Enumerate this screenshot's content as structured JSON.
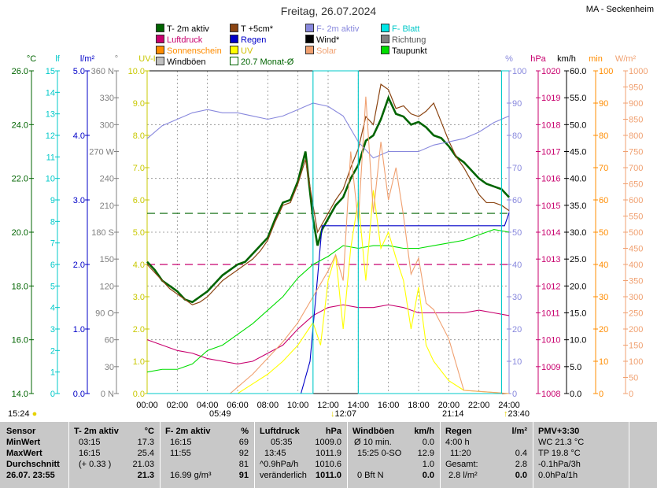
{
  "header": {
    "title": "Freitag, 26.07.2024",
    "station": "MA - Seckenheim"
  },
  "legend": [
    {
      "label": "T- 2m aktiv",
      "color": "#006400"
    },
    {
      "label": "T +5cm*",
      "color": "#8b4513"
    },
    {
      "label": "F- 2m aktiv",
      "color": "#8888dd"
    },
    {
      "label": "F- Blatt",
      "color": "#00c8c8"
    },
    {
      "label": "Luftdruck",
      "color": "#c8006e"
    },
    {
      "label": "Regen",
      "color": "#0000c8"
    },
    {
      "label": "Wind*",
      "color": "#000000"
    },
    {
      "label": "Richtung",
      "color": "#808080"
    },
    {
      "label": "Sonnenschein",
      "color": "#ff8c00"
    },
    {
      "label": "UV",
      "color": "#ffff00"
    },
    {
      "label": "Solar",
      "color": "#f0a070"
    },
    {
      "label": "Taupunkt",
      "color": "#00dd00"
    },
    {
      "label": "Windböen",
      "color": "#c0c0c0"
    },
    {
      "label": "20.7 Monat-Ø",
      "color": "#006400"
    }
  ],
  "sun": {
    "sunrise": "05:49",
    "sunset": "21:14",
    "moonrise": "12:07",
    "moonset": "23:40",
    "left_time": "15:24"
  },
  "chart_data": {
    "type": "line",
    "x_ticks": [
      "00:00",
      "02:00",
      "04:00",
      "06:00",
      "08:00",
      "10:00",
      "12:00",
      "14:00",
      "16:00",
      "18:00",
      "20:00",
      "22:00",
      "24:00"
    ],
    "axes": {
      "temp": {
        "unit": "°C",
        "color": "#006400",
        "ticks": [
          "14.0",
          "16.0",
          "18.0",
          "20.0",
          "22.0",
          "24.0",
          "26.0"
        ],
        "range": [
          14,
          26
        ]
      },
      "leaf": {
        "unit": "lf",
        "color": "#00c8c8",
        "ticks": [
          "0",
          "1",
          "2",
          "3",
          "4",
          "5",
          "6",
          "7",
          "8",
          "9",
          "10",
          "11",
          "12",
          "13",
          "14",
          "15"
        ],
        "range": [
          0,
          15
        ]
      },
      "rain": {
        "unit": "l/m²",
        "color": "#0000c8",
        "ticks": [
          "0.0",
          "1.0",
          "2.0",
          "3.0",
          "4.0",
          "5.0"
        ],
        "range": [
          0,
          5
        ]
      },
      "dir": {
        "unit": "°",
        "color": "#808080",
        "ticks": [
          "0 N",
          "30",
          "60",
          "90 O",
          "120",
          "150",
          "180 S",
          "210",
          "240",
          "270 W",
          "300",
          "330",
          "360 N"
        ],
        "range": [
          0,
          360
        ]
      },
      "uv": {
        "unit": "UV-I",
        "color": "#c8c800",
        "ticks": [
          "0.0",
          "1.0",
          "2.0",
          "3.0",
          "4.0",
          "5.0",
          "6.0",
          "7.0",
          "8.0",
          "9.0",
          "10.0"
        ],
        "range": [
          0,
          10
        ]
      },
      "hum": {
        "unit": "%",
        "color": "#8888dd",
        "ticks": [
          "0",
          "10",
          "20",
          "30",
          "40",
          "50",
          "60",
          "70",
          "80",
          "90",
          "100"
        ],
        "range": [
          0,
          100
        ]
      },
      "press": {
        "unit": "hPa",
        "color": "#c8006e",
        "ticks": [
          "1008",
          "1009",
          "1010",
          "1011",
          "1012",
          "1013",
          "1014",
          "1015",
          "1016",
          "1017",
          "1018",
          "1019",
          "1020"
        ],
        "range": [
          1008,
          1020
        ]
      },
      "wind": {
        "unit": "km/h",
        "color": "#000000",
        "ticks": [
          "0.0",
          "5.0",
          "10.0",
          "15.0",
          "20.0",
          "25.0",
          "30.0",
          "35.0",
          "40.0",
          "45.0",
          "50.0",
          "55.0",
          "60.0"
        ],
        "range": [
          0,
          60
        ]
      },
      "min": {
        "unit": "min",
        "color": "#ff8c00",
        "ticks": [
          "0",
          "10",
          "20",
          "30",
          "40",
          "50",
          "60",
          "70",
          "80",
          "90",
          "100"
        ],
        "range": [
          0,
          100
        ]
      },
      "solar": {
        "unit": "W/m²",
        "color": "#f0a070",
        "ticks": [
          "0",
          "50",
          "100",
          "150",
          "200",
          "250",
          "300",
          "350",
          "400",
          "450",
          "500",
          "550",
          "600",
          "650",
          "700",
          "750",
          "800",
          "850",
          "900",
          "950",
          "1000"
        ],
        "range": [
          0,
          1000
        ]
      }
    },
    "series": [
      {
        "name": "T- 2m aktiv",
        "axis": "temp",
        "color": "#006400",
        "x": [
          0,
          0.5,
          1,
          1.5,
          2,
          2.5,
          3,
          3.5,
          4,
          4.5,
          5,
          5.5,
          6,
          6.5,
          7,
          7.5,
          8,
          8.5,
          9,
          9.5,
          10,
          10.5,
          11,
          11.3,
          11.6,
          12,
          12.5,
          13,
          13.5,
          14,
          14.5,
          15,
          15.5,
          16,
          16.5,
          17,
          17.5,
          18,
          18.5,
          19,
          19.5,
          20,
          20.5,
          21,
          21.5,
          22,
          22.5,
          23,
          23.5,
          24
        ],
        "y": [
          18.9,
          18.6,
          18.2,
          18.0,
          17.8,
          17.5,
          17.4,
          17.6,
          17.8,
          18.1,
          18.4,
          18.6,
          18.8,
          18.9,
          19.2,
          19.5,
          19.8,
          20.5,
          21.1,
          21.2,
          21.9,
          23.0,
          20.5,
          19.5,
          20.1,
          20.5,
          21.0,
          21.3,
          22.0,
          22.5,
          23.4,
          23.6,
          24.2,
          25.0,
          24.4,
          24.3,
          24.0,
          24.1,
          23.9,
          23.6,
          23.5,
          23.2,
          22.8,
          22.6,
          22.3,
          22.0,
          21.8,
          21.7,
          21.6,
          21.3
        ]
      },
      {
        "name": "T +5cm*",
        "axis": "temp",
        "color": "#8b4513",
        "x": [
          0,
          0.5,
          1,
          1.5,
          2,
          2.5,
          3,
          3.5,
          4,
          4.5,
          5,
          5.5,
          6,
          6.5,
          7,
          7.5,
          8,
          8.5,
          9,
          9.5,
          10,
          10.5,
          11,
          11.3,
          11.6,
          12,
          12.5,
          13,
          13.5,
          14,
          14.5,
          15,
          15.5,
          16,
          16.5,
          17,
          17.5,
          18,
          18.5,
          19,
          19.5,
          20,
          20.5,
          21,
          21.5,
          22,
          22.5,
          23,
          23.5,
          24
        ],
        "y": [
          18.8,
          18.5,
          18.2,
          17.9,
          17.7,
          17.5,
          17.3,
          17.4,
          17.6,
          17.9,
          18.2,
          18.4,
          18.6,
          18.8,
          19.0,
          19.3,
          19.7,
          20.4,
          21.0,
          21.1,
          21.8,
          22.7,
          21.0,
          20.0,
          20.3,
          20.7,
          21.2,
          21.6,
          22.4,
          23.1,
          24.3,
          24.0,
          25.5,
          25.3,
          24.6,
          24.7,
          24.4,
          24.3,
          24.5,
          24.8,
          24.1,
          23.4,
          22.8,
          22.4,
          21.9,
          21.4,
          21.1,
          21.1,
          21.0,
          20.8
        ]
      },
      {
        "name": "F- 2m aktiv",
        "axis": "hum",
        "color": "#8888dd",
        "x": [
          0,
          1,
          2,
          3,
          4,
          5,
          6,
          7,
          8,
          9,
          10,
          11,
          12,
          13,
          14,
          15,
          16,
          17,
          18,
          19,
          20,
          21,
          22,
          23,
          24
        ],
        "y": [
          79,
          83,
          85,
          87,
          88,
          87,
          87,
          86,
          85,
          86,
          88,
          90,
          89,
          86,
          78,
          73,
          75,
          75,
          75,
          77,
          78,
          79,
          81,
          84,
          86
        ]
      },
      {
        "name": "Luftdruck",
        "axis": "press",
        "color": "#c8006e",
        "x": [
          0,
          1,
          2,
          3,
          4,
          5,
          6,
          7,
          8,
          9,
          10,
          11,
          12,
          13,
          14,
          15,
          16,
          17,
          18,
          19,
          20,
          21,
          22,
          23,
          24
        ],
        "y": [
          1010.0,
          1009.8,
          1009.6,
          1009.5,
          1009.3,
          1009.2,
          1009.1,
          1009.2,
          1009.5,
          1009.8,
          1010.4,
          1010.9,
          1011.2,
          1011.3,
          1011.2,
          1011.2,
          1011.3,
          1011.2,
          1011.0,
          1011.0,
          1011.0,
          1011.0,
          1011.1,
          1011.0,
          1010.9
        ]
      },
      {
        "name": "Regen",
        "axis": "rain",
        "color": "#0000c8",
        "x": [
          0,
          10.2,
          10.8,
          11.3,
          11.6,
          12,
          14,
          16,
          18,
          20,
          22,
          23.7,
          24
        ],
        "y": [
          0,
          0,
          0.5,
          1.8,
          2.6,
          2.6,
          2.6,
          2.6,
          2.6,
          2.6,
          2.6,
          2.6,
          2.8
        ]
      },
      {
        "name": "Taupunkt",
        "axis": "temp",
        "color": "#00dd00",
        "x": [
          0,
          1,
          2,
          3,
          4,
          5,
          6,
          7,
          8,
          9,
          10,
          11,
          12,
          13,
          14,
          15,
          16,
          17,
          18,
          19,
          20,
          21,
          22,
          23,
          24
        ],
        "y": [
          14.8,
          14.9,
          14.9,
          15.1,
          15.6,
          15.8,
          16.2,
          16.6,
          17.1,
          17.6,
          18.3,
          18.8,
          19.1,
          19.5,
          19.4,
          19.5,
          19.5,
          19.4,
          19.4,
          19.5,
          19.6,
          19.7,
          19.9,
          20.1,
          20.0
        ]
      },
      {
        "name": "UV",
        "axis": "uv",
        "color": "#ffff00",
        "x": [
          0,
          6,
          7,
          8,
          9,
          10,
          11,
          11.5,
          12,
          12.5,
          13,
          13.5,
          14,
          14.5,
          15,
          15.5,
          16,
          16.5,
          17,
          17.5,
          18,
          18.5,
          19,
          20,
          21,
          24
        ],
        "y": [
          0,
          0,
          0.3,
          0.6,
          1.0,
          1.5,
          2.2,
          1.5,
          3.5,
          4.3,
          2.0,
          4.5,
          6.0,
          3.5,
          6.3,
          4.5,
          5.0,
          4.2,
          3.5,
          2.0,
          3.3,
          1.5,
          1.0,
          0.4,
          0.1,
          0
        ]
      },
      {
        "name": "Solar",
        "axis": "solar",
        "color": "#f0a070",
        "x": [
          0,
          5.5,
          6,
          7,
          8,
          9,
          10,
          11,
          12,
          12.5,
          13,
          13.5,
          14,
          14.5,
          15,
          15.5,
          16,
          16.5,
          17,
          17.5,
          18,
          18.5,
          19,
          20,
          20.5,
          21,
          24
        ],
        "y": [
          0,
          0,
          20,
          60,
          110,
          160,
          220,
          300,
          380,
          430,
          350,
          750,
          530,
          920,
          560,
          780,
          600,
          700,
          550,
          370,
          420,
          280,
          260,
          170,
          90,
          10,
          0
        ]
      },
      {
        "name": "F- Blatt",
        "axis": "leaf",
        "color": "#00c8c8",
        "x": [
          0,
          11,
          11,
          11.2,
          11.2,
          14,
          14,
          23.5,
          23.5,
          24
        ],
        "y": [
          0,
          0,
          15,
          15,
          15,
          15,
          0,
          0,
          15,
          15
        ]
      },
      {
        "name": "20.7 Monat-Ø",
        "axis": "temp",
        "color": "#006400",
        "y_const": 20.7
      },
      {
        "name": "Luftdruck Monat-Ø",
        "axis": "press",
        "color": "#c8006e",
        "y_const": 1012.8
      }
    ]
  },
  "table": {
    "col1": {
      "header": "Sensor",
      "rows": [
        "MinWert",
        "MaxWert",
        "Durchschnitt",
        "26.07. 23:55"
      ]
    },
    "col2": {
      "header": "T- 2m aktiv",
      "unit": "°C",
      "rows": [
        [
          "03:15",
          "17.3"
        ],
        [
          "16:15",
          "25.4"
        ],
        [
          "(+ 0.33 )",
          "21.03"
        ],
        [
          "",
          "21.3"
        ]
      ]
    },
    "col3": {
      "header": "F- 2m aktiv",
      "unit": "%",
      "rows": [
        [
          "16:15",
          "69"
        ],
        [
          "11:55",
          "92"
        ],
        [
          "",
          "81"
        ],
        [
          "16.99 g/m³",
          "91"
        ]
      ]
    },
    "col4": {
      "header": "Luftdruck",
      "unit": "hPa",
      "rows": [
        [
          "05:35",
          "1009.0"
        ],
        [
          "13:45",
          "1011.9"
        ],
        [
          "^0.9hPa/h",
          "1010.6"
        ],
        [
          "veränderlich",
          "1011.0"
        ]
      ]
    },
    "col5": {
      "header": "Windböen",
      "unit": "km/h",
      "rows": [
        [
          "Ø 10 min.",
          "0.0"
        ],
        [
          "15:25  0-SO",
          "12.9"
        ],
        [
          "",
          "1.0"
        ],
        [
          "0 Bft N",
          "0.0"
        ]
      ]
    },
    "col6": {
      "header": "Regen",
      "unit": "l/m²",
      "rows": [
        [
          "4:00 h",
          ""
        ],
        [
          "11:20",
          "0.4"
        ],
        [
          "Gesamt:",
          "2.8"
        ],
        [
          "2.8 l/m²",
          "0.0"
        ]
      ]
    },
    "col7": {
      "header": "PMV+3:30",
      "rows": [
        "WC 21.3 °C",
        "TP 19.8 °C",
        "-0.1hPa/3h",
        "0.0hPa/1h"
      ]
    }
  }
}
